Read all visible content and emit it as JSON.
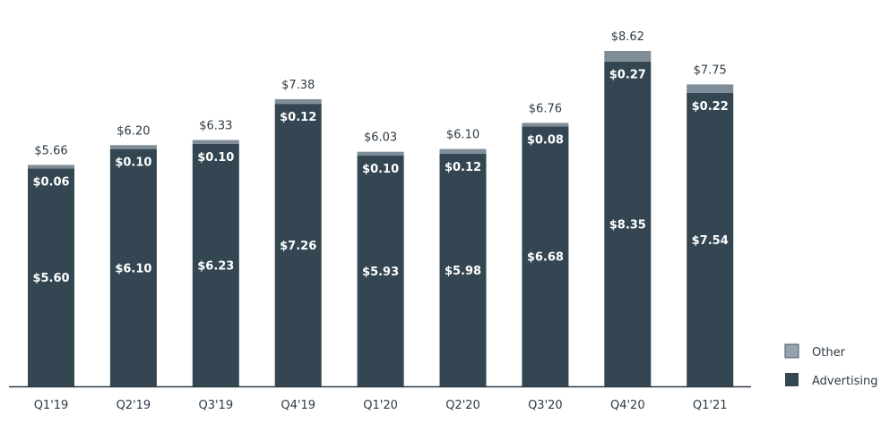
{
  "chart_data": {
    "type": "bar",
    "stacked": true,
    "categories": [
      "Q1'19",
      "Q2'19",
      "Q3'19",
      "Q4'19",
      "Q1'20",
      "Q2'20",
      "Q3'20",
      "Q4'20",
      "Q1'21"
    ],
    "series": [
      {
        "name": "Advertising",
        "color": "#334652",
        "values": [
          5.6,
          6.1,
          6.23,
          7.26,
          5.93,
          5.98,
          6.68,
          8.35,
          7.54
        ]
      },
      {
        "name": "Other",
        "color": "#7f8d99",
        "values": [
          0.06,
          0.1,
          0.1,
          0.12,
          0.1,
          0.12,
          0.08,
          0.27,
          0.22
        ]
      }
    ],
    "totals": [
      5.66,
      6.2,
      6.33,
      7.38,
      6.03,
      6.1,
      6.76,
      8.62,
      7.75
    ],
    "value_prefix": "$",
    "title": "",
    "xlabel": "",
    "ylabel": "",
    "ylim": [
      0,
      9.93
    ],
    "grid": false,
    "legend": {
      "placement": "bottom-right",
      "entries": [
        "Other",
        "Advertising"
      ],
      "colors": [
        "#95a3b0",
        "#334652"
      ]
    }
  }
}
